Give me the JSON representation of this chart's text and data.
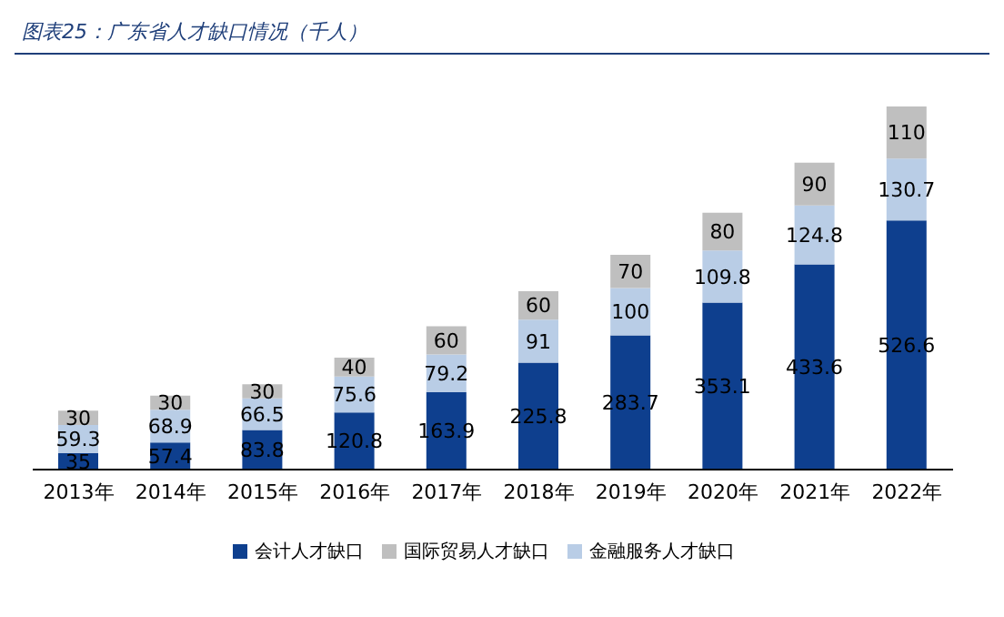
{
  "chart_data": {
    "type": "bar",
    "title": "图表25：广东省人才缺口情况（千人）",
    "stacked": true,
    "data_labels": true,
    "legend": "bottom",
    "grid": false,
    "categories": [
      "2013年",
      "2014年",
      "2015年",
      "2016年",
      "2017年",
      "2018年",
      "2019年",
      "2020年",
      "2021年",
      "2022年"
    ],
    "series": [
      {
        "name": "会计人才缺口",
        "color": "#0e3f8e",
        "values": [
          35,
          57.4,
          83.8,
          120.8,
          163.9,
          225.8,
          283.7,
          353.1,
          433.6,
          526.6
        ]
      },
      {
        "name": "金融服务人才缺口",
        "color": "#b9cde6",
        "values": [
          59.3,
          68.9,
          66.5,
          75.6,
          79.2,
          91,
          100,
          109.8,
          124.8,
          130.7
        ]
      },
      {
        "name": "国际贸易人才缺口",
        "color": "#bfbfbf",
        "values": [
          30,
          30,
          30,
          40,
          60,
          60,
          70,
          80,
          90,
          110
        ]
      }
    ]
  }
}
